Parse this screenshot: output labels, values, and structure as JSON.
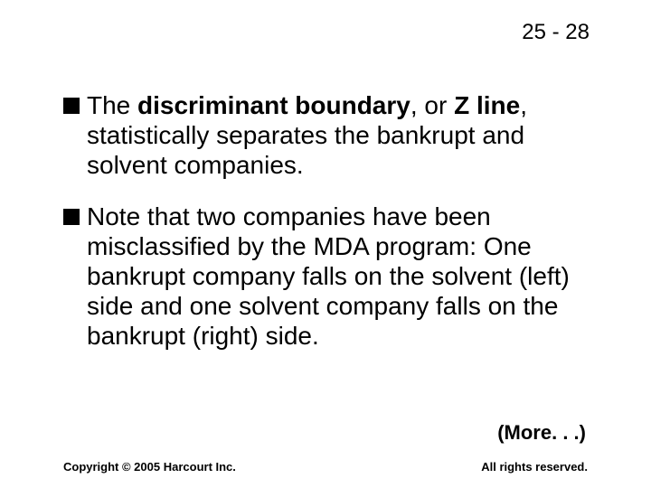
{
  "page_number": "25 - 28",
  "bullets": [
    {
      "prefix": "The ",
      "bold1": "discriminant boundary",
      "mid": ", or ",
      "bold2": "Z line",
      "suffix": ", statistically separates the bankrupt and solvent companies."
    },
    {
      "text": "Note that two companies have been misclassified by the MDA program: One bankrupt company falls on the solvent (left) side and one solvent company falls on the bankrupt (right) side."
    }
  ],
  "more": "(More. . .)",
  "footer_left": "Copyright © 2005 Harcourt Inc.",
  "footer_right": "All rights reserved.",
  "colors": {
    "background": "#ffffff",
    "text": "#000000",
    "bullet": "#000000"
  },
  "typography": {
    "body_fontsize": 28,
    "pagenum_fontsize": 24,
    "more_fontsize": 22,
    "footer_fontsize": 13
  }
}
